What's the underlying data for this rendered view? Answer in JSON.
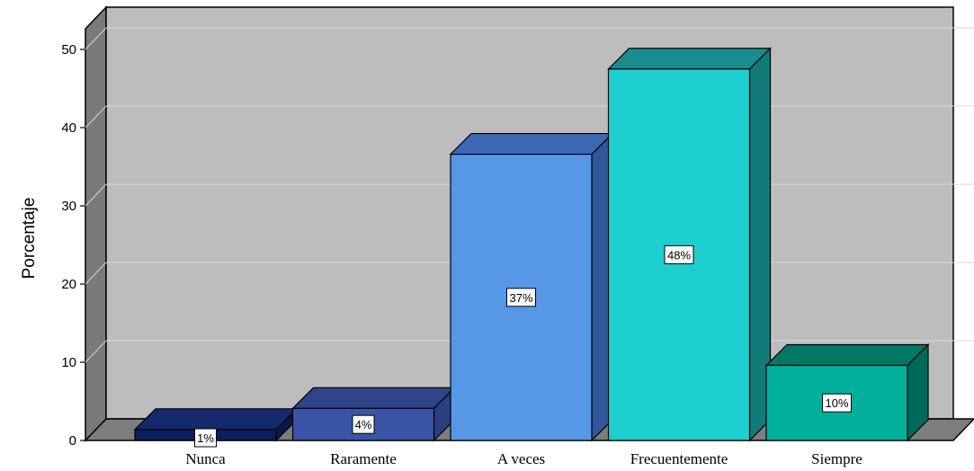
{
  "chart_data": {
    "type": "bar",
    "categories": [
      "Nunca",
      "Raramente",
      "A veces",
      "Frecuentemente",
      "Siempre"
    ],
    "values": [
      1.4,
      4.1,
      36.6,
      47.5,
      9.6
    ],
    "data_labels": [
      "1%",
      "4%",
      "37%",
      "48%",
      "10%"
    ],
    "ylabel": "Porcentaje",
    "xlabel": "",
    "ylim": [
      0,
      50
    ],
    "yticks": [
      0,
      10,
      20,
      30,
      40,
      50
    ],
    "grid": true,
    "style": "3d",
    "colors": {
      "front": [
        "#0b1f5c",
        "#3a55a6",
        "#5698e6",
        "#1ecfcf",
        "#00b09c"
      ],
      "top": [
        "#132a6e",
        "#2d4488",
        "#3c68b5",
        "#178d8d",
        "#007866"
      ],
      "side": [
        "#091a4a",
        "#2a3f80",
        "#305899",
        "#137a7a",
        "#006a5a"
      ],
      "wall_back": "#bdbdbd",
      "wall_side": "#7a7a7a",
      "floor": "#7d7d7d",
      "gridline": "#d9d9d9"
    }
  }
}
